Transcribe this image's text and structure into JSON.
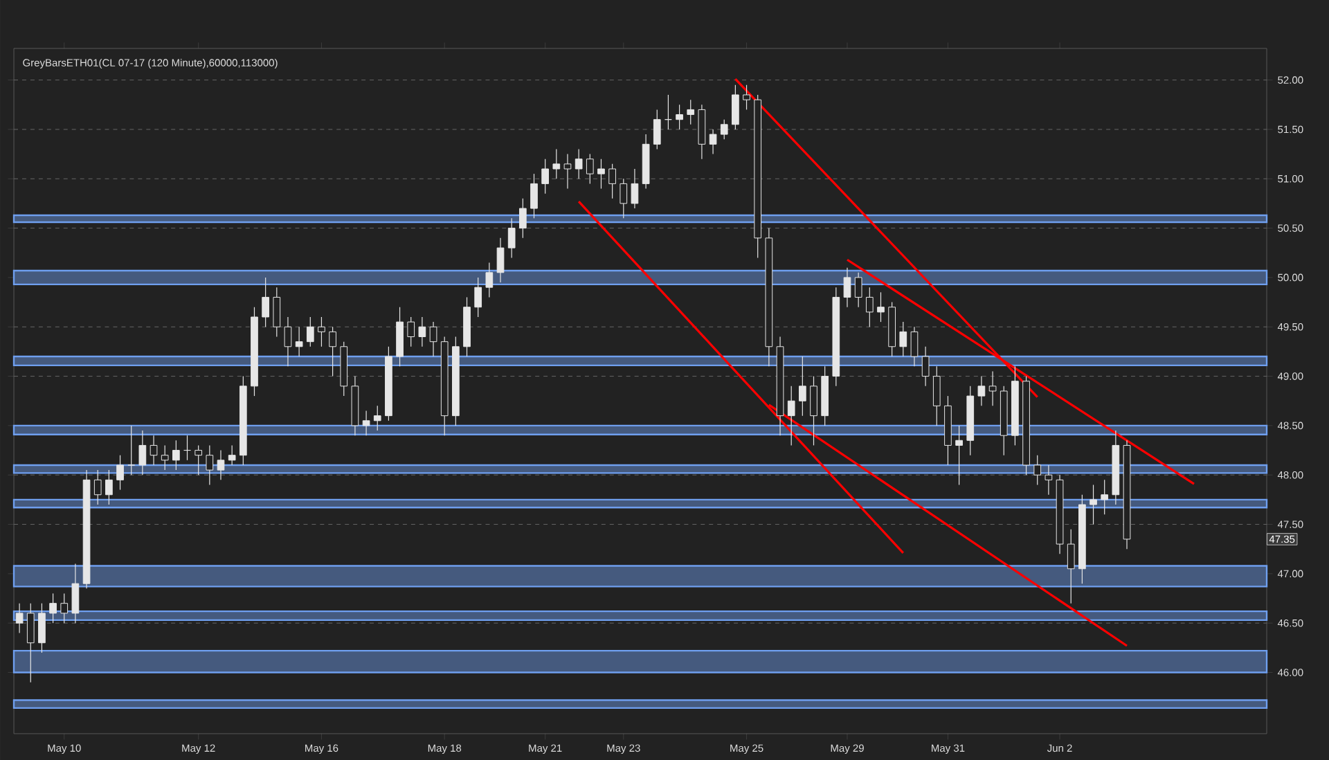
{
  "chart_data": {
    "type": "candlestick",
    "title": "GreyBarsETH01(CL 07-17 (120 Minute),60000,113000)",
    "categories": [
      null,
      null,
      null,
      null,
      "May 10",
      null,
      null,
      null,
      null,
      null,
      null,
      null,
      null,
      null,
      null,
      null,
      "May 12",
      null,
      null,
      null,
      null,
      null,
      null,
      null,
      null,
      null,
      null,
      "May 16",
      null,
      null,
      null,
      null,
      null,
      null,
      null,
      null,
      null,
      null,
      "May 18",
      null,
      null,
      null,
      null,
      null,
      null,
      null,
      null,
      "May 21",
      null,
      null,
      null,
      null,
      null,
      null,
      "May 23",
      null,
      null,
      null,
      null,
      null,
      null,
      null,
      null,
      null,
      null,
      "May 25",
      null,
      null,
      null,
      null,
      null,
      null,
      null,
      null,
      "May 29",
      null,
      null,
      null,
      null,
      null,
      null,
      null,
      null,
      "May 31",
      null,
      null,
      null,
      null,
      null,
      null,
      null,
      null,
      null,
      "Jun 2",
      null,
      null,
      null,
      null,
      null,
      null,
      null,
      null,
      null,
      null,
      null,
      null,
      null,
      null,
      null,
      null,
      null,
      null
    ],
    "ylim": [
      45.38,
      52.32
    ],
    "yticks": [
      {
        "value": 46,
        "label": "46.00"
      },
      {
        "value": 46.5,
        "label": "46.50"
      },
      {
        "value": 47,
        "label": "47.00"
      },
      {
        "value": 47.5,
        "label": "47.50"
      },
      {
        "value": 48,
        "label": "48.00"
      },
      {
        "value": 48.5,
        "label": "48.50"
      },
      {
        "value": 49,
        "label": "49.00"
      },
      {
        "value": 49.5,
        "label": "49.50"
      },
      {
        "value": 50,
        "label": "50.00"
      },
      {
        "value": 50.5,
        "label": "50.50"
      },
      {
        "value": 51,
        "label": "51.00"
      },
      {
        "value": 51.5,
        "label": "51.50"
      },
      {
        "value": 52,
        "label": "52.00"
      }
    ],
    "grid": "y",
    "annotations": [
      {
        "text": "47.35",
        "y": 47.35
      }
    ],
    "bands": [
      {
        "axis": "y",
        "from": 50.56,
        "to": 50.63,
        "color": "#6f9fef"
      },
      {
        "axis": "y",
        "from": 49.93,
        "to": 50.07,
        "color": "#6f9fef"
      },
      {
        "axis": "y",
        "from": 49.11,
        "to": 49.2,
        "color": "#6f9fef"
      },
      {
        "axis": "y",
        "from": 48.41,
        "to": 48.5,
        "color": "#6f9fef"
      },
      {
        "axis": "y",
        "from": 48.02,
        "to": 48.1,
        "color": "#6f9fef"
      },
      {
        "axis": "y",
        "from": 47.67,
        "to": 47.75,
        "color": "#6f9fef"
      },
      {
        "axis": "y",
        "from": 46.87,
        "to": 47.08,
        "color": "#6f9fef"
      },
      {
        "axis": "y",
        "from": 46.53,
        "to": 46.62,
        "color": "#6f9fef"
      },
      {
        "axis": "y",
        "from": 46.0,
        "to": 46.22,
        "color": "#6f9fef"
      },
      {
        "axis": "y",
        "from": 45.64,
        "to": 45.72,
        "color": "#6f9fef"
      }
    ],
    "series": [
      {
        "color": "#e6e6e6",
        "ohlc": [
          [
            46.5,
            46.7,
            46.4,
            46.6
          ],
          [
            46.6,
            46.7,
            45.9,
            46.3
          ],
          [
            46.3,
            46.7,
            46.2,
            46.6
          ],
          [
            46.6,
            46.8,
            46.5,
            46.7
          ],
          [
            46.7,
            46.8,
            46.5,
            46.6
          ],
          [
            46.6,
            47.1,
            46.5,
            46.9
          ],
          [
            46.9,
            48.05,
            46.85,
            47.95
          ],
          [
            47.95,
            48.05,
            47.7,
            47.8
          ],
          [
            47.8,
            48.05,
            47.7,
            47.95
          ],
          [
            47.95,
            48.2,
            47.85,
            48.1
          ],
          [
            48.1,
            48.5,
            48.0,
            48.1
          ],
          [
            48.1,
            48.45,
            48.0,
            48.3
          ],
          [
            48.3,
            48.4,
            48.1,
            48.2
          ],
          [
            48.2,
            48.3,
            48.05,
            48.15
          ],
          [
            48.15,
            48.35,
            48.05,
            48.25
          ],
          [
            48.25,
            48.4,
            48.15,
            48.25
          ],
          [
            48.25,
            48.3,
            48.0,
            48.2
          ],
          [
            48.2,
            48.3,
            47.9,
            48.05
          ],
          [
            48.05,
            48.25,
            47.95,
            48.15
          ],
          [
            48.15,
            48.3,
            48.1,
            48.2
          ],
          [
            48.2,
            49.0,
            48.1,
            48.9
          ],
          [
            48.9,
            49.7,
            48.8,
            49.6
          ],
          [
            49.6,
            50.0,
            49.5,
            49.8
          ],
          [
            49.8,
            49.9,
            49.4,
            49.5
          ],
          [
            49.5,
            49.6,
            49.1,
            49.3
          ],
          [
            49.3,
            49.5,
            49.2,
            49.35
          ],
          [
            49.35,
            49.6,
            49.3,
            49.5
          ],
          [
            49.5,
            49.6,
            49.3,
            49.45
          ],
          [
            49.45,
            49.5,
            49.0,
            49.3
          ],
          [
            49.3,
            49.35,
            48.8,
            48.9
          ],
          [
            48.9,
            49.0,
            48.4,
            48.5
          ],
          [
            48.5,
            48.65,
            48.4,
            48.55
          ],
          [
            48.55,
            48.7,
            48.45,
            48.6
          ],
          [
            48.6,
            49.3,
            48.55,
            49.2
          ],
          [
            49.2,
            49.7,
            49.1,
            49.55
          ],
          [
            49.55,
            49.6,
            49.3,
            49.4
          ],
          [
            49.4,
            49.6,
            49.3,
            49.5
          ],
          [
            49.5,
            49.55,
            49.2,
            49.35
          ],
          [
            49.35,
            49.4,
            48.4,
            48.6
          ],
          [
            48.6,
            49.4,
            48.5,
            49.3
          ],
          [
            49.3,
            49.8,
            49.2,
            49.7
          ],
          [
            49.7,
            50.0,
            49.6,
            49.9
          ],
          [
            49.9,
            50.15,
            49.8,
            50.05
          ],
          [
            50.05,
            50.4,
            49.95,
            50.3
          ],
          [
            50.3,
            50.6,
            50.2,
            50.5
          ],
          [
            50.5,
            50.8,
            50.4,
            50.7
          ],
          [
            50.7,
            51.05,
            50.6,
            50.95
          ],
          [
            50.95,
            51.2,
            50.85,
            51.1
          ],
          [
            51.1,
            51.3,
            51.0,
            51.15
          ],
          [
            51.15,
            51.25,
            50.9,
            51.1
          ],
          [
            51.1,
            51.3,
            51.0,
            51.2
          ],
          [
            51.2,
            51.25,
            50.95,
            51.05
          ],
          [
            51.05,
            51.2,
            50.9,
            51.1
          ],
          [
            51.1,
            51.15,
            50.8,
            50.95
          ],
          [
            50.95,
            51.0,
            50.6,
            50.75
          ],
          [
            50.75,
            51.1,
            50.7,
            50.95
          ],
          [
            50.95,
            51.45,
            50.9,
            51.35
          ],
          [
            51.35,
            51.7,
            51.3,
            51.6
          ],
          [
            51.6,
            51.85,
            51.5,
            51.6
          ],
          [
            51.6,
            51.75,
            51.5,
            51.65
          ],
          [
            51.65,
            51.8,
            51.55,
            51.7
          ],
          [
            51.7,
            51.75,
            51.2,
            51.35
          ],
          [
            51.35,
            51.5,
            51.25,
            51.45
          ],
          [
            51.45,
            51.6,
            51.4,
            51.55
          ],
          [
            51.55,
            51.95,
            51.5,
            51.85
          ],
          [
            51.85,
            51.95,
            51.7,
            51.8
          ],
          [
            51.8,
            51.85,
            50.2,
            50.4
          ],
          [
            50.4,
            50.5,
            49.1,
            49.3
          ],
          [
            49.3,
            49.4,
            48.4,
            48.6
          ],
          [
            48.6,
            48.9,
            48.3,
            48.75
          ],
          [
            48.75,
            49.2,
            48.6,
            48.9
          ],
          [
            48.9,
            49.0,
            48.3,
            48.6
          ],
          [
            48.6,
            49.1,
            48.5,
            49.0
          ],
          [
            49.0,
            49.9,
            48.9,
            49.8
          ],
          [
            49.8,
            50.1,
            49.7,
            50.0
          ],
          [
            50.0,
            50.05,
            49.7,
            49.8
          ],
          [
            49.8,
            49.9,
            49.5,
            49.65
          ],
          [
            49.65,
            49.85,
            49.55,
            49.7
          ],
          [
            49.7,
            49.75,
            49.2,
            49.3
          ],
          [
            49.3,
            49.55,
            49.2,
            49.45
          ],
          [
            49.45,
            49.5,
            49.1,
            49.2
          ],
          [
            49.2,
            49.3,
            48.9,
            49.0
          ],
          [
            49.0,
            49.1,
            48.5,
            48.7
          ],
          [
            48.7,
            48.8,
            48.1,
            48.3
          ],
          [
            48.3,
            48.5,
            47.9,
            48.35
          ],
          [
            48.35,
            48.9,
            48.2,
            48.8
          ],
          [
            48.8,
            49.0,
            48.7,
            48.9
          ],
          [
            48.9,
            49.05,
            48.7,
            48.85
          ],
          [
            48.85,
            48.9,
            48.2,
            48.4
          ],
          [
            48.4,
            49.1,
            48.3,
            48.95
          ],
          [
            48.95,
            49.0,
            48.0,
            48.1
          ],
          [
            48.1,
            48.2,
            47.9,
            48.0
          ],
          [
            48.0,
            48.1,
            47.8,
            47.95
          ],
          [
            47.95,
            48.0,
            47.2,
            47.3
          ],
          [
            47.3,
            47.45,
            46.7,
            47.05
          ],
          [
            47.05,
            47.8,
            46.9,
            47.7
          ],
          [
            47.7,
            47.9,
            47.5,
            47.75
          ],
          [
            47.75,
            47.95,
            47.6,
            47.8
          ],
          [
            47.8,
            48.45,
            47.7,
            48.3
          ],
          [
            48.3,
            48.35,
            47.25,
            47.35
          ],
          null,
          null,
          null,
          null,
          null,
          null,
          null,
          null,
          null,
          null,
          null,
          null
        ]
      },
      {
        "type": "line",
        "color": "#ff0000",
        "values": [
          null,
          null,
          null,
          null,
          null,
          null,
          null,
          null,
          null,
          null,
          null,
          null,
          null,
          null,
          null,
          null,
          null,
          null,
          null,
          null,
          null,
          null,
          null,
          null,
          null,
          null,
          null,
          null,
          null,
          null,
          null,
          null,
          null,
          null,
          null,
          null,
          null,
          null,
          null,
          null,
          null,
          null,
          null,
          null,
          null,
          null,
          null,
          null,
          null,
          null,
          50.77,
          null,
          null,
          null,
          null,
          null,
          null,
          null,
          null,
          null,
          null,
          null,
          null,
          null,
          null,
          null,
          null,
          null,
          null,
          null,
          null,
          null,
          null,
          null,
          null,
          null,
          null,
          null,
          null,
          47.21,
          null,
          null,
          null,
          null,
          null,
          null,
          null,
          null,
          null,
          null,
          null,
          null,
          null,
          null,
          null,
          null,
          null,
          null,
          null,
          null,
          null,
          null,
          null,
          null,
          null,
          null,
          null,
          null,
          null,
          null,
          null,
          null
        ]
      },
      {
        "type": "line",
        "color": "#ff0000",
        "values": [
          null,
          null,
          null,
          null,
          null,
          null,
          null,
          null,
          null,
          null,
          null,
          null,
          null,
          null,
          null,
          null,
          null,
          null,
          null,
          null,
          null,
          null,
          null,
          null,
          null,
          null,
          null,
          null,
          null,
          null,
          null,
          null,
          null,
          null,
          null,
          null,
          null,
          null,
          null,
          null,
          null,
          null,
          null,
          null,
          null,
          null,
          null,
          null,
          null,
          null,
          null,
          null,
          null,
          null,
          null,
          null,
          null,
          null,
          null,
          null,
          null,
          null,
          null,
          null,
          52.01,
          null,
          null,
          null,
          null,
          null,
          null,
          null,
          null,
          null,
          null,
          null,
          null,
          null,
          null,
          null,
          null,
          null,
          null,
          null,
          null,
          null,
          null,
          null,
          null,
          null,
          null,
          48.79,
          null,
          null,
          null,
          null,
          null,
          null,
          null,
          null,
          null,
          null,
          null,
          null,
          null,
          null,
          null,
          null,
          null,
          null,
          null,
          null
        ]
      },
      {
        "type": "line",
        "color": "#ff0000",
        "values": [
          null,
          null,
          null,
          null,
          null,
          null,
          null,
          null,
          null,
          null,
          null,
          null,
          null,
          null,
          null,
          null,
          null,
          null,
          null,
          null,
          null,
          null,
          null,
          null,
          null,
          null,
          null,
          null,
          null,
          null,
          null,
          null,
          null,
          null,
          null,
          null,
          null,
          null,
          null,
          null,
          null,
          null,
          null,
          null,
          null,
          null,
          null,
          null,
          null,
          null,
          null,
          null,
          null,
          null,
          null,
          null,
          null,
          null,
          null,
          null,
          null,
          null,
          null,
          null,
          null,
          null,
          null,
          null,
          null,
          null,
          null,
          null,
          null,
          null,
          50.18,
          null,
          null,
          null,
          null,
          null,
          null,
          null,
          null,
          null,
          null,
          null,
          null,
          null,
          null,
          null,
          null,
          null,
          null,
          null,
          null,
          null,
          null,
          null,
          null,
          null,
          null,
          null,
          null,
          null,
          null,
          47.91,
          null,
          null,
          null,
          null,
          null,
          null
        ]
      },
      {
        "type": "line",
        "color": "#ff0000",
        "values": [
          null,
          null,
          null,
          null,
          null,
          null,
          null,
          null,
          null,
          null,
          null,
          null,
          null,
          null,
          null,
          null,
          null,
          null,
          null,
          null,
          null,
          null,
          null,
          null,
          null,
          null,
          null,
          null,
          null,
          null,
          null,
          null,
          null,
          null,
          null,
          null,
          null,
          null,
          null,
          null,
          null,
          null,
          null,
          null,
          null,
          null,
          null,
          null,
          null,
          null,
          null,
          null,
          null,
          null,
          null,
          null,
          null,
          null,
          null,
          null,
          null,
          null,
          null,
          null,
          null,
          null,
          null,
          48.71,
          null,
          null,
          null,
          null,
          null,
          null,
          null,
          null,
          null,
          null,
          null,
          null,
          null,
          null,
          null,
          null,
          null,
          null,
          null,
          null,
          null,
          null,
          null,
          null,
          null,
          null,
          null,
          null,
          null,
          null,
          null,
          46.27,
          null,
          null,
          null,
          null,
          null,
          null,
          null,
          null,
          null,
          null,
          null,
          null
        ]
      }
    ]
  }
}
